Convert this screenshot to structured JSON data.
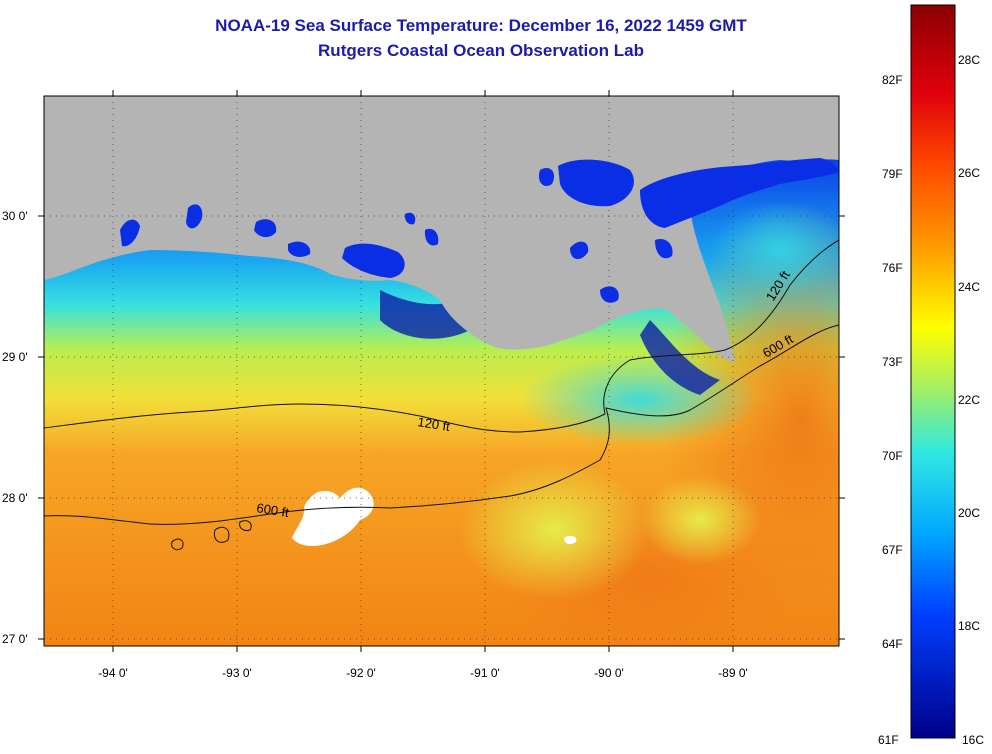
{
  "title": {
    "line1": "NOAA-19 Sea Surface Temperature:  December 16, 2022 1459 GMT",
    "line2": "Rutgers Coastal Ocean Observation Lab"
  },
  "map": {
    "lat_labels": [
      "30 0'",
      "29 0'",
      "28 0'",
      "27 0'"
    ],
    "lon_labels": [
      "-94 0'",
      "-93 0'",
      "-92 0'",
      "-91 0'",
      "-90 0'",
      "-89 0'"
    ],
    "contour_labels": [
      "120 ft",
      "600 ft",
      "120 ft",
      "600 ft"
    ]
  },
  "colorbar": {
    "fahrenheit_labels": [
      "82F",
      "79F",
      "76F",
      "73F",
      "70F",
      "67F",
      "64F",
      "61F"
    ],
    "celsius_labels": [
      "28C",
      "26C",
      "24C",
      "22C",
      "20C",
      "18C",
      "16C"
    ]
  },
  "colors": {
    "title": "#1c1ca8",
    "land": "#b4b4b4",
    "cloud": "#ffffff",
    "colormap": [
      "#8b0000",
      "#ff1500",
      "#ff8c00",
      "#ffff00",
      "#5ff0b0",
      "#00c8ff",
      "#0050ff",
      "#00008b"
    ]
  }
}
